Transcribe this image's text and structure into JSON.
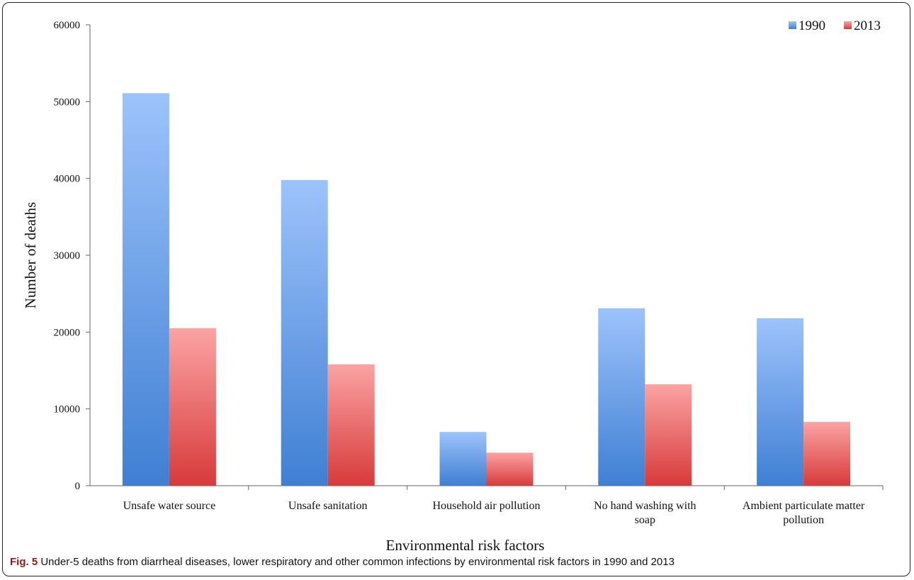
{
  "chart_data": {
    "type": "bar",
    "categories": [
      "Unsafe water source",
      "Unsafe sanitation",
      "Household air pollution",
      "No hand washing with soap",
      "Ambient particulate matter pollution"
    ],
    "category_lines": [
      [
        "Unsafe water source"
      ],
      [
        "Unsafe sanitation"
      ],
      [
        "Household air pollution"
      ],
      [
        "No hand washing with",
        "soap"
      ],
      [
        "Ambient particulate matter",
        "pollution"
      ]
    ],
    "series": [
      {
        "name": "1990",
        "values": [
          51100,
          39800,
          7000,
          23100,
          21800
        ],
        "color_top": "#9dc3fb",
        "color_bottom": "#3f7fd3"
      },
      {
        "name": "2013",
        "values": [
          20500,
          15800,
          4300,
          13200,
          8300
        ],
        "color_top": "#fba3a3",
        "color_bottom": "#d83a3a"
      }
    ],
    "xlabel": "Environmental  risk factors",
    "ylabel": "Number  of deaths",
    "ylim": [
      0,
      60000
    ],
    "yticks": [
      0,
      10000,
      20000,
      30000,
      40000,
      50000,
      60000
    ],
    "legend_position": "top-right",
    "grid": false
  },
  "caption": {
    "label": "Fig. 5",
    "text": " Under-5 deaths from diarrheal diseases, lower respiratory and other common infections by environmental risk factors in 1990 and 2013"
  }
}
